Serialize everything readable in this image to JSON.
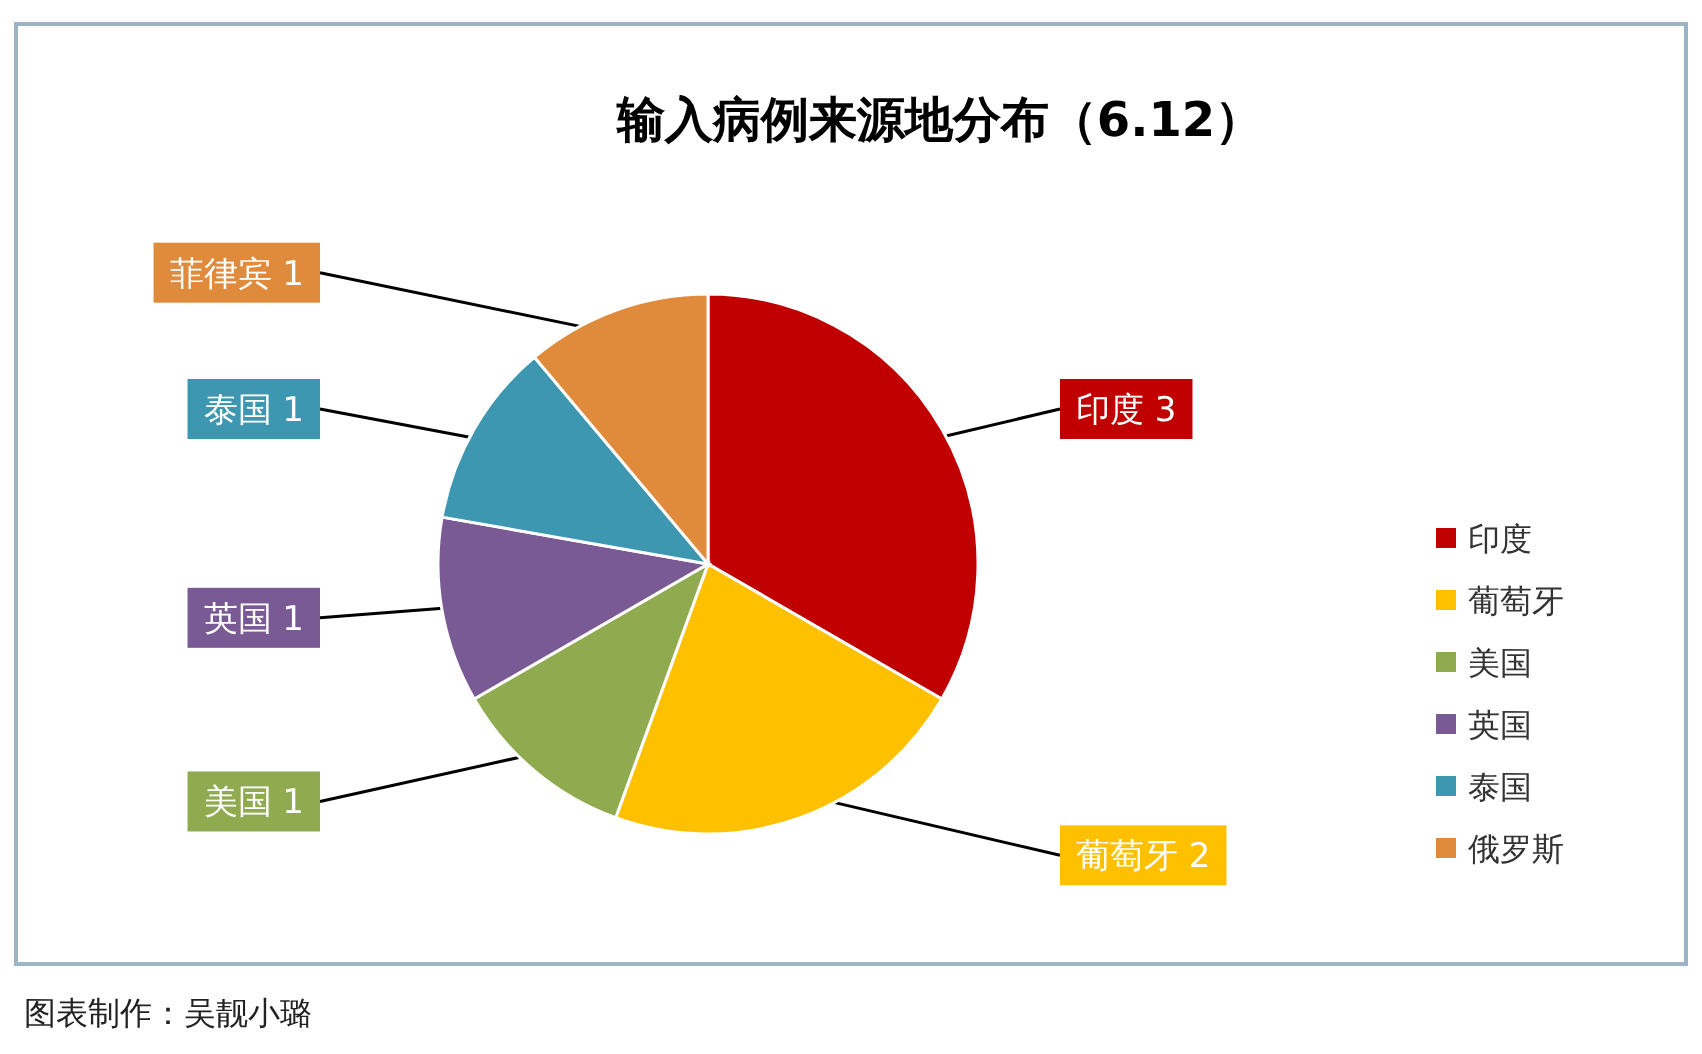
{
  "chart_data": {
    "type": "pie",
    "title": "输入病例来源地分布（6.12）",
    "categories": [
      "印度",
      "葡萄牙",
      "美国",
      "英国",
      "泰国",
      "俄罗斯"
    ],
    "values": [
      3,
      2,
      1,
      1,
      1,
      1
    ],
    "colors": [
      "#c00000",
      "#ffc000",
      "#8faa4f",
      "#7a5a94",
      "#3e97b0",
      "#e08a3c"
    ],
    "value_labels": [
      "印度 3",
      "葡萄牙 2",
      "美国 1",
      "英国 1",
      "泰国 1",
      "菲律宾 1"
    ],
    "legend": "right",
    "annotations": [
      "图表制作：吴靓小璐"
    ]
  }
}
